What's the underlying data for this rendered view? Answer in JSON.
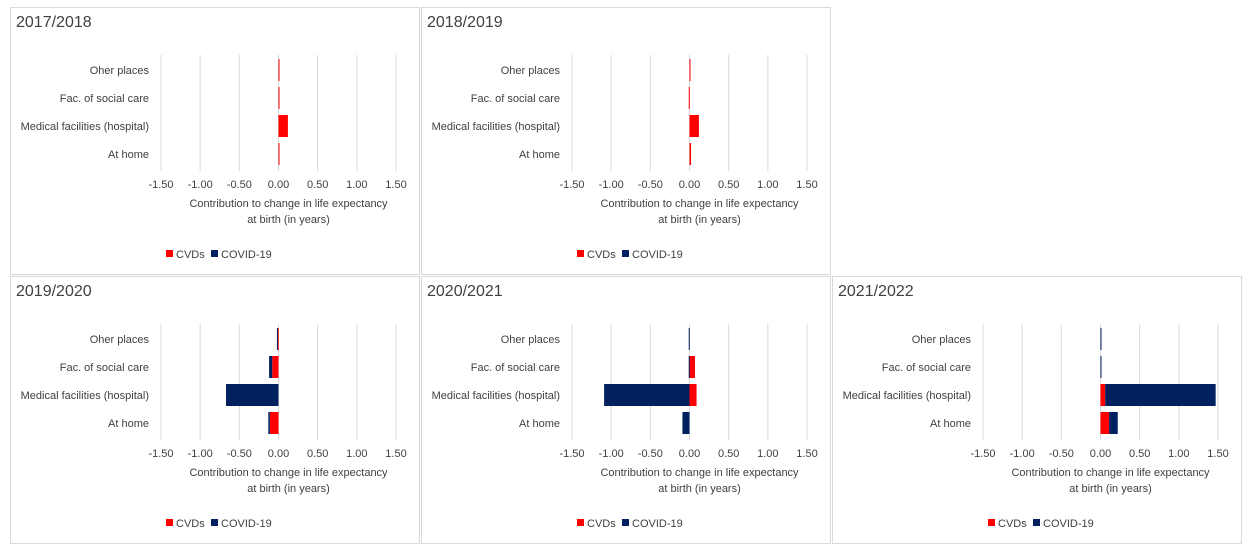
{
  "colors": {
    "cvds": "#ff0000",
    "covid": "#002060",
    "grid": "#d9d9d9",
    "text": "#404040"
  },
  "chart_data": [
    {
      "type": "bar",
      "orientation": "horizontal",
      "stacked": true,
      "title": "2017/2018",
      "categories": [
        "Oher places",
        "Fac. of social care",
        "Medical facilities (hospital)",
        "At home"
      ],
      "series": [
        {
          "name": "CVDs",
          "values": [
            0.01,
            0.01,
            0.12,
            0.01
          ]
        },
        {
          "name": "COVID-19",
          "values": [
            0,
            0,
            0,
            0
          ]
        }
      ],
      "xlabel": [
        "Contribution to change in life expectancy",
        "at birth (in years)"
      ],
      "xticks": [
        "-1.50",
        "-1.00",
        "-0.50",
        "0.00",
        "0.50",
        "1.00",
        "1.50"
      ],
      "xlim": [
        -1.5,
        1.5
      ],
      "grid": true,
      "legend": "bottom"
    },
    {
      "type": "bar",
      "orientation": "horizontal",
      "stacked": true,
      "title": "2018/2019",
      "categories": [
        "Oher places",
        "Fac. of social care",
        "Medical facilities (hospital)",
        "At home"
      ],
      "series": [
        {
          "name": "CVDs",
          "values": [
            0.01,
            -0.01,
            0.12,
            0.02
          ]
        },
        {
          "name": "COVID-19",
          "values": [
            0,
            0,
            0,
            0
          ]
        }
      ],
      "xlabel": [
        "Contribution to change in life expectancy",
        "at birth (in years)"
      ],
      "xticks": [
        "-1.50",
        "-1.00",
        "-0.50",
        "0.00",
        "0.50",
        "1.00",
        "1.50"
      ],
      "xlim": [
        -1.5,
        1.5
      ],
      "grid": true,
      "legend": "bottom"
    },
    {
      "type": "bar",
      "orientation": "horizontal",
      "stacked": true,
      "title": "2019/2020",
      "categories": [
        "Oher places",
        "Fac. of social care",
        "Medical facilities (hospital)",
        "At home"
      ],
      "series": [
        {
          "name": "CVDs",
          "values": [
            -0.01,
            -0.08,
            0.0,
            -0.11
          ]
        },
        {
          "name": "COVID-19",
          "values": [
            -0.01,
            -0.04,
            -0.67,
            -0.02
          ]
        }
      ],
      "xlabel": [
        "Contribution to change in life expectancy",
        "at birth (in years)"
      ],
      "xticks": [
        "-1.50",
        "-1.00",
        "-0.50",
        "0.00",
        "0.50",
        "1.00",
        "1.50"
      ],
      "xlim": [
        -1.5,
        1.5
      ],
      "grid": true,
      "legend": "bottom"
    },
    {
      "type": "bar",
      "orientation": "horizontal",
      "stacked": true,
      "title": "2020/2021",
      "categories": [
        "Oher places",
        "Fac. of social care",
        "Medical facilities (hospital)",
        "At home"
      ],
      "series": [
        {
          "name": "CVDs",
          "values": [
            0.0,
            0.07,
            0.09,
            0.0
          ]
        },
        {
          "name": "COVID-19",
          "values": [
            -0.01,
            -0.01,
            -1.09,
            -0.09
          ]
        }
      ],
      "xlabel": [
        "Contribution to change in life expectancy",
        "at birth (in years)"
      ],
      "xticks": [
        "-1.50",
        "-1.00",
        "-0.50",
        "0.00",
        "0.50",
        "1.00",
        "1.50"
      ],
      "xlim": [
        -1.5,
        1.5
      ],
      "grid": true,
      "legend": "bottom"
    },
    {
      "type": "bar",
      "orientation": "horizontal",
      "stacked": true,
      "title": "2021/2022",
      "categories": [
        "Oher places",
        "Fac. of social care",
        "Medical facilities (hospital)",
        "At home"
      ],
      "series": [
        {
          "name": "CVDs",
          "values": [
            0.0,
            0.0,
            0.06,
            0.11
          ]
        },
        {
          "name": "COVID-19",
          "values": [
            0.01,
            0.01,
            1.41,
            0.11
          ]
        }
      ],
      "xlabel": [
        "Contribution to change in life expectancy",
        "at birth (in years)"
      ],
      "xticks": [
        "-1.50",
        "-1.00",
        "-0.50",
        "0.00",
        "0.50",
        "1.00",
        "1.50"
      ],
      "xlim": [
        -1.5,
        1.5
      ],
      "grid": true,
      "legend": "bottom"
    }
  ]
}
